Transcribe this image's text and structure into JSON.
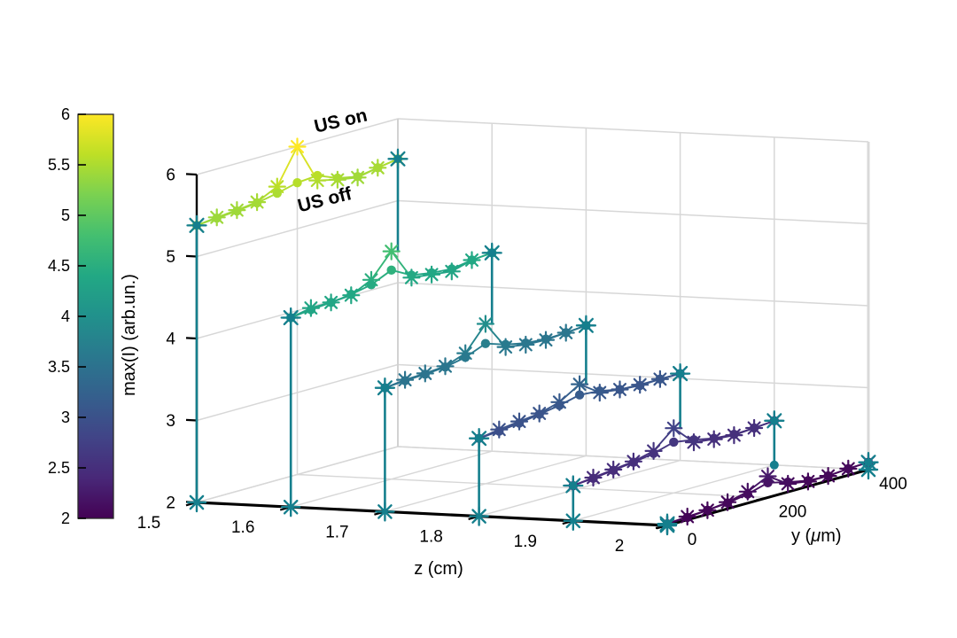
{
  "figure": {
    "background": "#ffffff"
  },
  "annotations": {
    "us_on": "US on",
    "us_off": "US off"
  },
  "colorbar": {
    "min": 2,
    "max": 6,
    "tick_labels": [
      "2",
      "2.5",
      "3",
      "3.5",
      "4",
      "4.5",
      "5",
      "5.5",
      "6"
    ],
    "tick_values": [
      2,
      2.5,
      3,
      3.5,
      4,
      4.5,
      5,
      5.5,
      6
    ]
  },
  "axes": {
    "z": {
      "label": "z (cm)",
      "tick_labels": [
        "1.5",
        "1.6",
        "1.7",
        "1.8",
        "1.9",
        "2"
      ],
      "tick_values": [
        1.5,
        1.6,
        1.7,
        1.8,
        1.9,
        2
      ]
    },
    "y": {
      "label_prefix": "y (",
      "label_mu": "μ",
      "label_suffix": "m)",
      "tick_labels": [
        "0",
        "200",
        "400"
      ],
      "tick_values": [
        0,
        200,
        400
      ]
    },
    "v": {
      "label": "max(I) (arb.un.)",
      "tick_labels": [
        "2",
        "3",
        "4",
        "5",
        "6"
      ],
      "tick_values": [
        2,
        3,
        4,
        5,
        6
      ],
      "range": [
        2,
        6
      ]
    }
  },
  "colors": {
    "stem": "#157f8d",
    "grid": "#d7d7d7",
    "axis": "#000000",
    "viridis": [
      [
        0,
        "#440154"
      ],
      [
        0.1,
        "#482878"
      ],
      [
        0.2,
        "#414487"
      ],
      [
        0.3,
        "#355f8d"
      ],
      [
        0.4,
        "#2a788e"
      ],
      [
        0.5,
        "#21918c"
      ],
      [
        0.6,
        "#22a884"
      ],
      [
        0.7,
        "#44bf70"
      ],
      [
        0.8,
        "#7ad151"
      ],
      [
        0.9,
        "#bddf26"
      ],
      [
        1,
        "#fde725"
      ]
    ]
  },
  "chart_data": {
    "type": "line3d-waterfall",
    "title": "",
    "zlabel": "z (cm)",
    "ylabel": "y (μm)",
    "vlabel": "max(I) (arb.un.)",
    "legend": [
      "US on",
      "US off"
    ],
    "grid": true,
    "v_range": [
      2,
      6
    ],
    "y_um": [
      0,
      40,
      80,
      120,
      160,
      200,
      240,
      280,
      320,
      360,
      400
    ],
    "slices": [
      {
        "z": 1.5,
        "us_on": [
          5.38,
          5.41,
          5.43,
          5.46,
          5.58,
          6.0,
          5.52,
          5.46,
          5.42,
          5.47,
          5.51
        ],
        "us_off": [
          5.38,
          5.4,
          5.42,
          5.45,
          5.5,
          5.56,
          5.58,
          5.48,
          5.43,
          5.47,
          5.51
        ]
      },
      {
        "z": 1.6,
        "us_on": [
          4.31,
          4.36,
          4.36,
          4.38,
          4.5,
          4.78,
          4.39,
          4.36,
          4.33,
          4.4,
          4.42
        ],
        "us_off": [
          4.31,
          4.34,
          4.36,
          4.39,
          4.44,
          4.55,
          4.42,
          4.38,
          4.36,
          4.4,
          4.42
        ]
      },
      {
        "z": 1.7,
        "us_on": [
          3.51,
          3.54,
          3.55,
          3.57,
          3.66,
          3.95,
          3.6,
          3.56,
          3.55,
          3.57,
          3.59
        ],
        "us_off": [
          3.51,
          3.53,
          3.54,
          3.56,
          3.61,
          3.71,
          3.63,
          3.58,
          3.56,
          3.57,
          3.59
        ]
      },
      {
        "z": 1.8,
        "us_on": [
          2.95,
          2.99,
          3.02,
          3.05,
          3.12,
          3.27,
          3.1,
          3.07,
          3.06,
          3.06,
          3.06
        ],
        "us_off": [
          2.95,
          2.97,
          3.0,
          3.04,
          3.08,
          3.14,
          3.12,
          3.07,
          3.05,
          3.06,
          3.06
        ]
      },
      {
        "z": 1.9,
        "us_on": [
          2.43,
          2.46,
          2.49,
          2.52,
          2.58,
          2.79,
          2.55,
          2.52,
          2.5,
          2.52,
          2.54
        ],
        "us_off": [
          2.43,
          2.45,
          2.48,
          2.51,
          2.55,
          2.62,
          2.58,
          2.53,
          2.51,
          2.52,
          2.54
        ]
      },
      {
        "z": 2.0,
        "us_on": [
          2.02,
          2.04,
          2.05,
          2.08,
          2.14,
          2.26,
          2.1,
          2.06,
          2.06,
          2.08,
          2.09
        ],
        "us_off": [
          2.02,
          2.03,
          2.05,
          2.07,
          2.11,
          2.18,
          2.12,
          2.07,
          2.06,
          2.08,
          2.09
        ]
      }
    ]
  }
}
